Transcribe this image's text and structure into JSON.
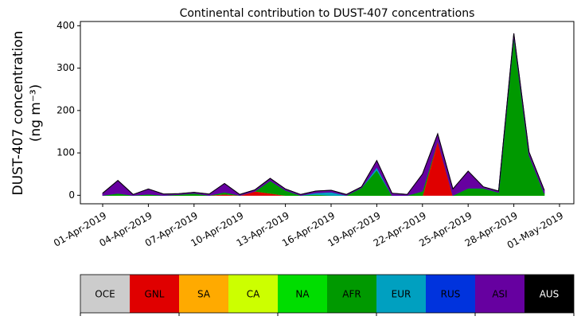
{
  "chart_data": {
    "type": "stacked_area",
    "title": "Continental contribution to DUST-407 concentrations",
    "y_label": [
      "DUST-407 concentration",
      "(ng m⁻³)"
    ],
    "x": [
      "2019-04-01",
      "2019-04-02",
      "2019-04-03",
      "2019-04-04",
      "2019-04-05",
      "2019-04-06",
      "2019-04-07",
      "2019-04-08",
      "2019-04-09",
      "2019-04-10",
      "2019-04-11",
      "2019-04-12",
      "2019-04-13",
      "2019-04-14",
      "2019-04-15",
      "2019-04-16",
      "2019-04-17",
      "2019-04-18",
      "2019-04-19",
      "2019-04-20",
      "2019-04-21",
      "2019-04-22",
      "2019-04-23",
      "2019-04-24",
      "2019-04-25",
      "2019-04-26",
      "2019-04-27",
      "2019-04-28",
      "2019-04-29",
      "2019-04-30"
    ],
    "series": [
      {
        "name": "OCE",
        "color": "#cccccc",
        "values": [
          0,
          0,
          0,
          0,
          0,
          0,
          0,
          0,
          0,
          0,
          0,
          0,
          0,
          0,
          0,
          0,
          0,
          0,
          0,
          0,
          0,
          0,
          0,
          0,
          0,
          0,
          0,
          0,
          0,
          0
        ]
      },
      {
        "name": "GNL",
        "color": "#e00000",
        "values": [
          0,
          0,
          0,
          0,
          0,
          0,
          0,
          0,
          3,
          0,
          10,
          5,
          0,
          0,
          0,
          0,
          0,
          0,
          0,
          0,
          0,
          0,
          130,
          0,
          0,
          0,
          0,
          0,
          0,
          0
        ]
      },
      {
        "name": "SA",
        "color": "#ffaa00",
        "values": [
          0,
          0,
          0,
          0,
          0,
          0,
          0,
          0,
          0,
          0,
          0,
          0,
          0,
          0,
          0,
          0,
          0,
          0,
          0,
          0,
          0,
          0,
          0,
          0,
          0,
          0,
          0,
          0,
          0,
          0
        ]
      },
      {
        "name": "CA",
        "color": "#ccff00",
        "values": [
          0,
          0,
          0,
          0,
          0,
          0,
          0,
          0,
          0,
          0,
          0,
          0,
          0,
          0,
          0,
          0,
          0,
          0,
          0,
          0,
          0,
          0,
          0,
          0,
          0,
          0,
          0,
          0,
          0,
          0
        ]
      },
      {
        "name": "NA",
        "color": "#00dd00",
        "values": [
          0,
          0,
          0,
          0,
          0,
          0,
          0,
          0,
          0,
          0,
          0,
          0,
          0,
          0,
          0,
          0,
          0,
          0,
          0,
          0,
          0,
          0,
          0,
          0,
          0,
          0,
          0,
          0,
          0,
          0
        ]
      },
      {
        "name": "AFR",
        "color": "#009900",
        "values": [
          0,
          5,
          0,
          3,
          0,
          2,
          5,
          0,
          5,
          0,
          0,
          30,
          12,
          0,
          2,
          0,
          0,
          18,
          60,
          0,
          0,
          10,
          0,
          0,
          17,
          17,
          7,
          377,
          95,
          5
        ]
      },
      {
        "name": "EUR",
        "color": "#00a0c0",
        "values": [
          0,
          0,
          0,
          0,
          0,
          0,
          0,
          0,
          0,
          0,
          0,
          0,
          0,
          0,
          4,
          8,
          0,
          0,
          7,
          0,
          0,
          0,
          0,
          0,
          0,
          0,
          0,
          0,
          0,
          0
        ]
      },
      {
        "name": "RUS",
        "color": "#0033dd",
        "values": [
          0,
          0,
          0,
          0,
          0,
          0,
          0,
          0,
          0,
          0,
          0,
          0,
          0,
          0,
          0,
          0,
          0,
          0,
          0,
          0,
          0,
          0,
          0,
          0,
          0,
          0,
          0,
          0,
          0,
          0
        ]
      },
      {
        "name": "ASI",
        "color": "#6600a0",
        "values": [
          5,
          30,
          2,
          12,
          3,
          2,
          2,
          3,
          20,
          2,
          3,
          5,
          3,
          2,
          4,
          4,
          2,
          2,
          15,
          5,
          2,
          40,
          15,
          15,
          40,
          3,
          3,
          5,
          7,
          7
        ]
      },
      {
        "name": "AUS",
        "color": "#000000",
        "values": [
          0,
          0,
          0,
          0,
          0,
          0,
          0,
          0,
          0,
          0,
          0,
          0,
          0,
          0,
          0,
          0,
          0,
          0,
          0,
          0,
          0,
          0,
          0,
          0,
          0,
          0,
          0,
          0,
          0,
          0
        ]
      }
    ],
    "ylim": [
      -20,
      410
    ],
    "yticks": [
      0,
      100,
      200,
      300,
      400
    ],
    "xticks": [
      {
        "value": "2019-04-01",
        "label": "01-Apr-2019"
      },
      {
        "value": "2019-04-04",
        "label": "04-Apr-2019"
      },
      {
        "value": "2019-04-07",
        "label": "07-Apr-2019"
      },
      {
        "value": "2019-04-10",
        "label": "10-Apr-2019"
      },
      {
        "value": "2019-04-13",
        "label": "13-Apr-2019"
      },
      {
        "value": "2019-04-16",
        "label": "16-Apr-2019"
      },
      {
        "value": "2019-04-19",
        "label": "19-Apr-2019"
      },
      {
        "value": "2019-04-22",
        "label": "22-Apr-2019"
      },
      {
        "value": "2019-04-25",
        "label": "25-Apr-2019"
      },
      {
        "value": "2019-04-28",
        "label": "28-Apr-2019"
      },
      {
        "value": "2019-05-01",
        "label": "01-May-2019"
      }
    ],
    "grid": false
  }
}
